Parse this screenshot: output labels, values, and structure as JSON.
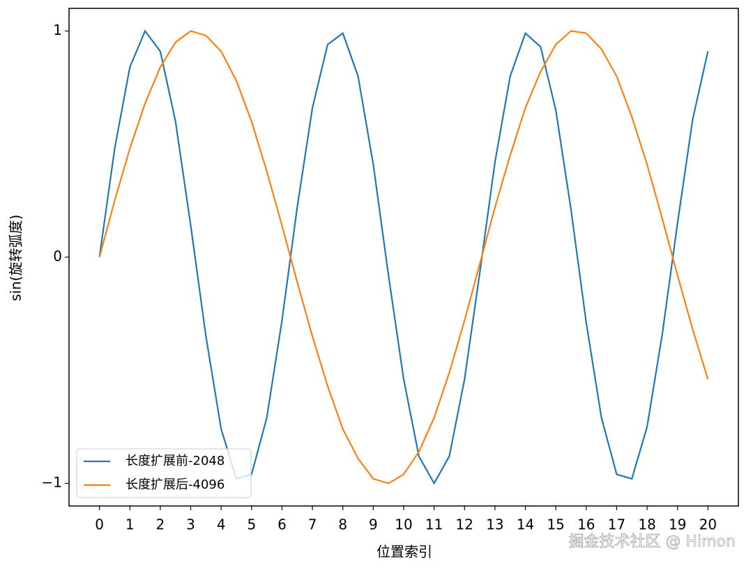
{
  "chart_data": {
    "type": "line",
    "xlabel": "位置索引",
    "ylabel": "sin(旋转弧度)",
    "x": [
      0,
      0.5,
      1,
      1.5,
      2,
      2.5,
      3,
      3.5,
      4,
      4.5,
      5,
      5.5,
      6,
      6.5,
      7,
      7.5,
      8,
      8.5,
      9,
      9.5,
      10,
      10.5,
      11,
      11.5,
      12,
      12.5,
      13,
      13.5,
      14,
      14.5,
      15,
      15.5,
      16,
      16.5,
      17,
      17.5,
      18,
      18.5,
      19,
      19.5,
      20
    ],
    "series": [
      {
        "name": "长度扩展前-2048",
        "color": "#1f77b4",
        "values": [
          0,
          0.48,
          0.84,
          1.0,
          0.91,
          0.6,
          0.14,
          -0.35,
          -0.76,
          -0.98,
          -0.96,
          -0.71,
          -0.28,
          0.22,
          0.66,
          0.94,
          0.99,
          0.8,
          0.41,
          -0.08,
          -0.54,
          -0.88,
          -1.0,
          -0.88,
          -0.54,
          -0.07,
          0.42,
          0.8,
          0.99,
          0.93,
          0.65,
          0.21,
          -0.29,
          -0.71,
          -0.96,
          -0.98,
          -0.75,
          -0.34,
          0.15,
          0.61,
          0.91
        ]
      },
      {
        "name": "长度扩展后-4096",
        "color": "#ff7f0e",
        "values": [
          0,
          0.25,
          0.48,
          0.68,
          0.84,
          0.95,
          1.0,
          0.98,
          0.91,
          0.78,
          0.6,
          0.38,
          0.14,
          -0.11,
          -0.35,
          -0.57,
          -0.76,
          -0.89,
          -0.98,
          -1.0,
          -0.96,
          -0.86,
          -0.71,
          -0.51,
          -0.28,
          -0.03,
          0.22,
          0.45,
          0.66,
          0.82,
          0.94,
          1.0,
          0.99,
          0.92,
          0.8,
          0.62,
          0.41,
          0.17,
          -0.08,
          -0.32,
          -0.54
        ]
      }
    ],
    "xlim": [
      -1,
      21
    ],
    "ylim": [
      -1.1,
      1.1
    ],
    "xticks": [
      0,
      1,
      2,
      3,
      4,
      5,
      6,
      7,
      8,
      9,
      10,
      11,
      12,
      13,
      14,
      15,
      16,
      17,
      18,
      19,
      20
    ],
    "yticks": [
      {
        "value": -1,
        "label": "−1"
      },
      0,
      1
    ],
    "legend": "lower left",
    "watermark": "掘金技术社区 @ Himon"
  }
}
